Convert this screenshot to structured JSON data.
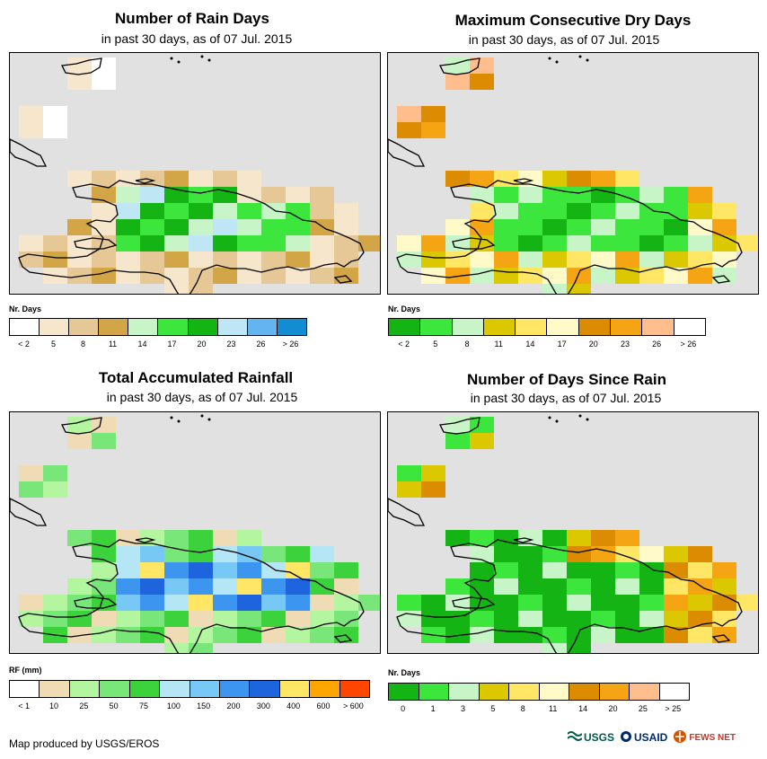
{
  "panels": [
    {
      "title": "Number of Rain Days",
      "subtitle": "in past 30 days, as of 07 Jul. 2015",
      "legend": {
        "title": "Nr. Days",
        "colors": [
          "#ffffff",
          "#f5e6cc",
          "#e6c896",
          "#d2a546",
          "#c8f5c8",
          "#3ce63c",
          "#14b414",
          "#bee6f5",
          "#64b4f0",
          "#148cd2"
        ],
        "labels": [
          "< 2",
          "5",
          "8",
          "11",
          "14",
          "17",
          "20",
          "23",
          "26",
          "> 26"
        ]
      }
    },
    {
      "title": "Maximum Consecutive Dry Days",
      "subtitle": "in past 30 days, as of 07 Jul. 2015",
      "legend": {
        "title": "Nr. Days",
        "colors": [
          "#14b414",
          "#3ce63c",
          "#c8f5c8",
          "#dcc800",
          "#ffe664",
          "#fffac8",
          "#dc8c00",
          "#f5a514",
          "#ffbe8c",
          "#ffffff"
        ],
        "labels": [
          "< 2",
          "5",
          "8",
          "11",
          "14",
          "17",
          "20",
          "23",
          "26",
          "> 26"
        ]
      }
    },
    {
      "title": "Total Accumulated Rainfall",
      "subtitle": "in past 30 days, as of 07 Jul. 2015",
      "legend": {
        "title": "RF (mm)",
        "colors": [
          "#ffffff",
          "#f0dcb4",
          "#b4f5a0",
          "#78e678",
          "#3cd23c",
          "#b4e6f5",
          "#78c8f5",
          "#3c96f0",
          "#1e64dc",
          "#ffe664",
          "#ffa500",
          "#ff4600"
        ],
        "labels": [
          "< 1",
          "10",
          "25",
          "50",
          "75",
          "100",
          "150",
          "200",
          "300",
          "400",
          "600",
          "> 600"
        ]
      }
    },
    {
      "title": "Number of Days Since Rain",
      "subtitle": "in past 30 days, as of 07 Jul. 2015",
      "legend": {
        "title": "Nr. Days",
        "colors": [
          "#14b414",
          "#3ce63c",
          "#c8f5c8",
          "#dcc800",
          "#ffe664",
          "#fffac8",
          "#dc8c00",
          "#f5a514",
          "#ffbe8c",
          "#ffffff"
        ],
        "labels": [
          "0",
          "1",
          "3",
          "5",
          "8",
          "11",
          "14",
          "20",
          "25",
          "> 25"
        ]
      }
    }
  ],
  "credit": "Map produced by USGS/EROS",
  "logos": [
    "USGS",
    "USAID",
    "FEWS NET"
  ],
  "colors": {
    "background": "#e1e1e1",
    "coast": "#000000"
  }
}
